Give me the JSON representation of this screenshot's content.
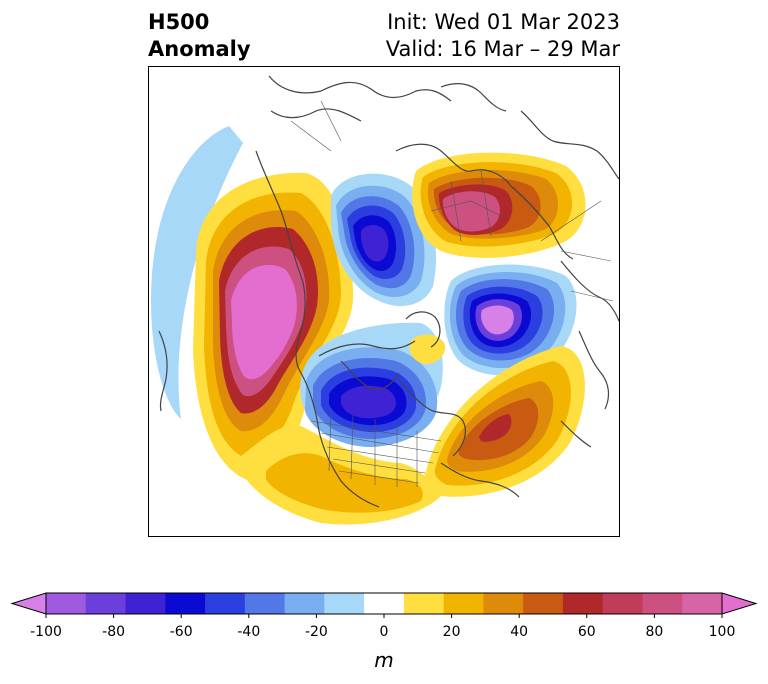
{
  "title": {
    "line1": "H500",
    "line2": "Anomaly"
  },
  "init": {
    "line1": "Init: Wed 01 Mar 2023",
    "line2": "Valid: 16 Mar – 29 Mar"
  },
  "colorbar": {
    "unit": "m",
    "min": -100,
    "max": 100,
    "step": 10,
    "tick_labels": [
      "-100",
      "-80",
      "-60",
      "-40",
      "-20",
      "0",
      "20",
      "40",
      "60",
      "80",
      "100"
    ],
    "tick_values": [
      -100,
      -80,
      -60,
      -40,
      -20,
      0,
      20,
      40,
      60,
      80,
      100
    ],
    "colors": [
      "#d680e8",
      "#a05ae0",
      "#6a3fdc",
      "#3e22d4",
      "#0a0ad2",
      "#2b3ee0",
      "#5278e8",
      "#79aef0",
      "#a8d8f8",
      "#ffffff",
      "#ffdf40",
      "#f2b400",
      "#de8a0a",
      "#c85a12",
      "#b0282a",
      "#c03c5a",
      "#cc5080",
      "#d864a8",
      "#e46ed0"
    ]
  },
  "colors": {
    "neg_extreme": "#d680e8",
    "neg_strong": "#0a0ad2",
    "neg_weak": "#a8d8f8",
    "pos_weak": "#ffdf40",
    "pos_strong": "#b0282a",
    "pos_extreme": "#e46ed0"
  }
}
